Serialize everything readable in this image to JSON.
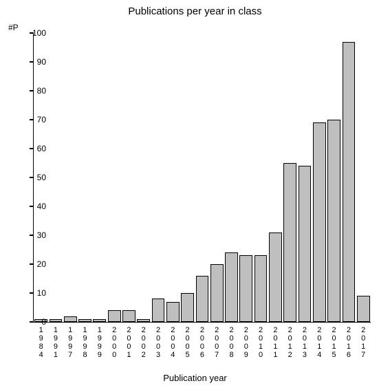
{
  "chart": {
    "type": "bar",
    "title": "Publications per year in class",
    "title_fontsize": 15,
    "ylabel": "#P",
    "xlabel": "Publication year",
    "label_fontsize": 13,
    "tick_fontsize": 12,
    "background_color": "#ffffff",
    "bar_color": "#bfbfbf",
    "axis_color": "#000000",
    "bar_border_color": "#000000",
    "ylim": [
      0,
      100
    ],
    "ytick_step": 10,
    "yticks": [
      0,
      10,
      20,
      30,
      40,
      50,
      60,
      70,
      80,
      90,
      100
    ],
    "bar_width": 0.88,
    "categories": [
      "1984",
      "1991",
      "1997",
      "1998",
      "1999",
      "2000",
      "2001",
      "2002",
      "2003",
      "2004",
      "2005",
      "2006",
      "2007",
      "2008",
      "2009",
      "2010",
      "2011",
      "2012",
      "2013",
      "2014",
      "2015",
      "2016",
      "2017"
    ],
    "values": [
      1,
      1,
      2,
      1,
      1,
      4,
      4,
      1,
      8,
      7,
      10,
      16,
      20,
      24,
      23,
      23,
      31,
      55,
      54,
      69,
      70,
      97,
      9
    ]
  }
}
